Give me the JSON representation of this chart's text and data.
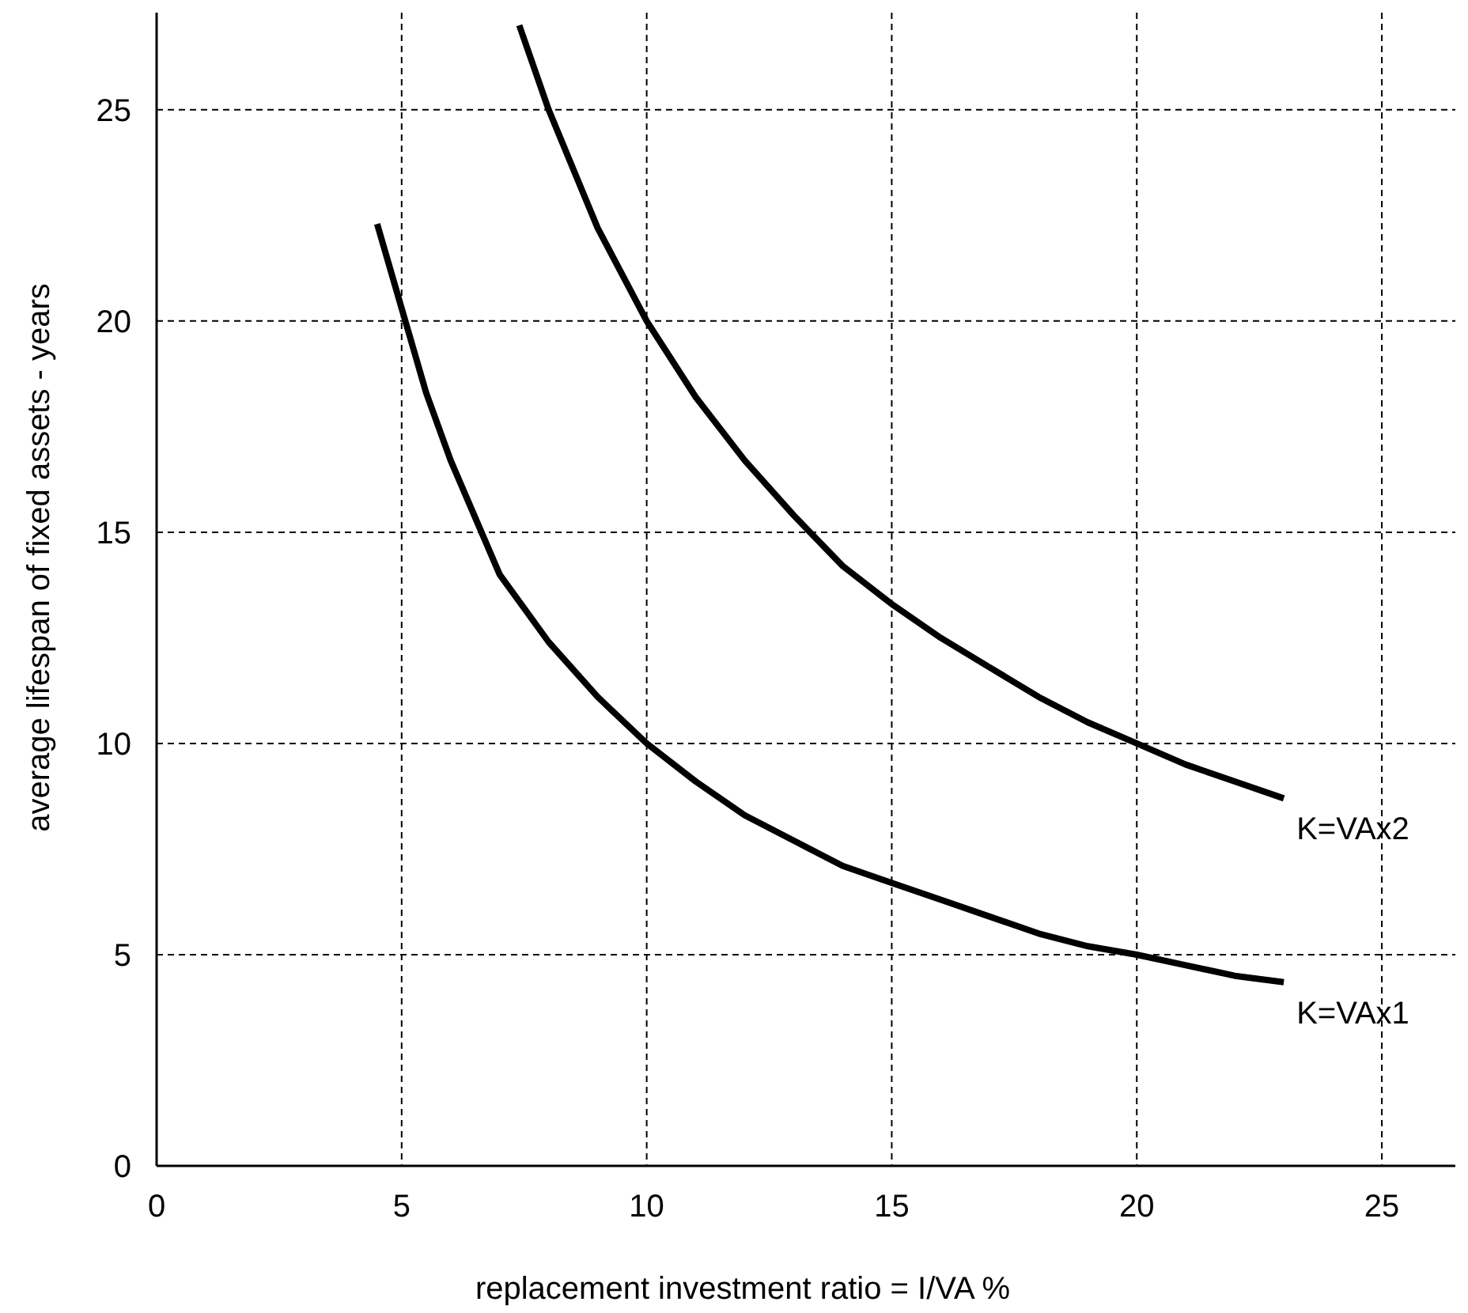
{
  "chart_data": {
    "type": "line",
    "xlabel": "replacement investment ratio = I/VA %",
    "ylabel": "average lifespan of fixed assets - years",
    "xlim": [
      0,
      26.5
    ],
    "ylim": [
      0,
      27.3
    ],
    "xticks": [
      0,
      5,
      10,
      15,
      20,
      25
    ],
    "yticks": [
      0,
      5,
      10,
      15,
      20,
      25
    ],
    "grid": true,
    "legend": false,
    "marker": "none",
    "line_style": "solid",
    "series": [
      {
        "name": "K=VAx1",
        "color": "#000000",
        "x": [
          4.5,
          5,
          5.5,
          6,
          7,
          8,
          9,
          10,
          11,
          12,
          13,
          14,
          15,
          16,
          17,
          18,
          19,
          20,
          21,
          22,
          23
        ],
        "values": [
          22.3,
          20.3,
          18.3,
          16.7,
          14.0,
          12.4,
          11.1,
          10.0,
          9.1,
          8.3,
          7.7,
          7.1,
          6.7,
          6.3,
          5.9,
          5.5,
          5.2,
          5.0,
          4.75,
          4.5,
          4.35
        ]
      },
      {
        "name": "K=VAx2",
        "color": "#000000",
        "x": [
          7.4,
          8,
          9,
          10,
          11,
          12,
          13,
          14,
          15,
          16,
          17,
          18,
          19,
          20,
          21,
          22,
          23
        ],
        "values": [
          27.0,
          25.0,
          22.2,
          20.0,
          18.2,
          16.7,
          15.4,
          14.2,
          13.3,
          12.5,
          11.8,
          11.1,
          10.5,
          10.0,
          9.5,
          9.1,
          8.7
        ]
      }
    ]
  }
}
